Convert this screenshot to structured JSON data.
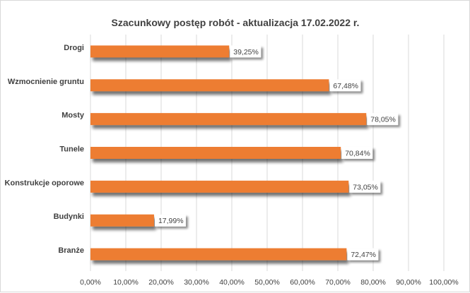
{
  "chart_data": {
    "type": "bar",
    "orientation": "horizontal",
    "title": "Szacunkowy postęp robót - aktualizacja 17.02.2022 r.",
    "categories": [
      "Drogi",
      "Wzmocnienie gruntu",
      "Mosty",
      "Tunele",
      "Konstrukcje oporowe",
      "Budynki",
      "Branże"
    ],
    "values": [
      39.25,
      67.48,
      78.05,
      70.84,
      73.05,
      17.99,
      72.47
    ],
    "data_labels": [
      "39,25%",
      "67,48%",
      "78,05%",
      "70,84%",
      "73,05%",
      "17,99%",
      "72,47%"
    ],
    "xlim": [
      0,
      100
    ],
    "x_ticks": [
      0,
      10,
      20,
      30,
      40,
      50,
      60,
      70,
      80,
      90,
      100
    ],
    "x_tick_labels": [
      "0,00%",
      "10,00%",
      "20,00%",
      "30,00%",
      "40,00%",
      "50,00%",
      "60,00%",
      "70,00%",
      "80,00%",
      "90,00%",
      "100,00%"
    ],
    "xlabel": "",
    "ylabel": "",
    "grid": true,
    "legend": "none",
    "bar_color": "#ed7d31",
    "grid_color": "#d9d9d9"
  }
}
